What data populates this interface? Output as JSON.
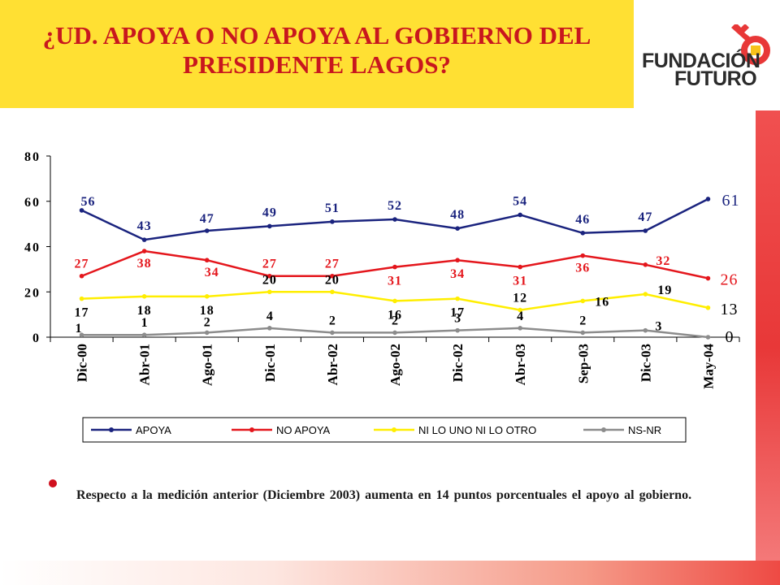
{
  "slide": {
    "title": "¿UD. APOYA O NO APOYA AL GOBIERNO DEL PRESIDENTE LAGOS?",
    "logo": {
      "line1": "FUNDACIÓN",
      "line2": "FUTURO",
      "icon": "key-icon"
    },
    "note": "Respecto a la medición anterior (Diciembre 2003) aumenta en 14 puntos porcentuales el apoyo al gobierno.",
    "colors": {
      "title_band": "#ffe033",
      "title_text": "#c8171e",
      "accent": "#e83838"
    }
  },
  "chart_data": {
    "type": "line",
    "categories": [
      "Dic-00",
      "Abr-01",
      "Ago-01",
      "Dic-01",
      "Abr-02",
      "Ago-02",
      "Dic-02",
      "Abr-03",
      "Sep-03",
      "Dic-03",
      "May-04"
    ],
    "ylim": [
      0,
      80
    ],
    "yticks": [
      "0",
      "20",
      "40",
      "60",
      "80"
    ],
    "grid": false,
    "legend_position": "bottom",
    "series": [
      {
        "name": "APOYA",
        "color": "#1a237e",
        "values": [
          56,
          43,
          47,
          49,
          51,
          52,
          48,
          54,
          46,
          47,
          61
        ],
        "labels": [
          "56",
          "43",
          "47",
          "49",
          "51",
          "52",
          "48",
          "54",
          "46",
          "47",
          "61"
        ]
      },
      {
        "name": "NO APOYA",
        "color": "#e4161c",
        "values": [
          27,
          38,
          34,
          27,
          27,
          31,
          34,
          31,
          36,
          32,
          26
        ],
        "labels": [
          "27",
          "38",
          "34",
          "27",
          "27",
          "31",
          "34",
          "31",
          "36",
          "32",
          "26"
        ]
      },
      {
        "name": "NI LO UNO NI LO OTRO",
        "color": "#ffee00",
        "values": [
          17,
          18,
          18,
          20,
          20,
          16,
          17,
          12,
          16,
          19,
          13
        ],
        "labels": [
          "17",
          "18",
          "18",
          "20",
          "20",
          "16",
          "17",
          "12",
          "16",
          "19",
          "13"
        ]
      },
      {
        "name": "NS-NR",
        "color": "#8c8c8c",
        "values": [
          1,
          1,
          2,
          4,
          2,
          2,
          3,
          4,
          2,
          3,
          0
        ],
        "labels": [
          "1",
          "1",
          "2",
          "4",
          "2",
          "2",
          "3",
          "4",
          "2",
          "3",
          "0"
        ]
      }
    ]
  }
}
